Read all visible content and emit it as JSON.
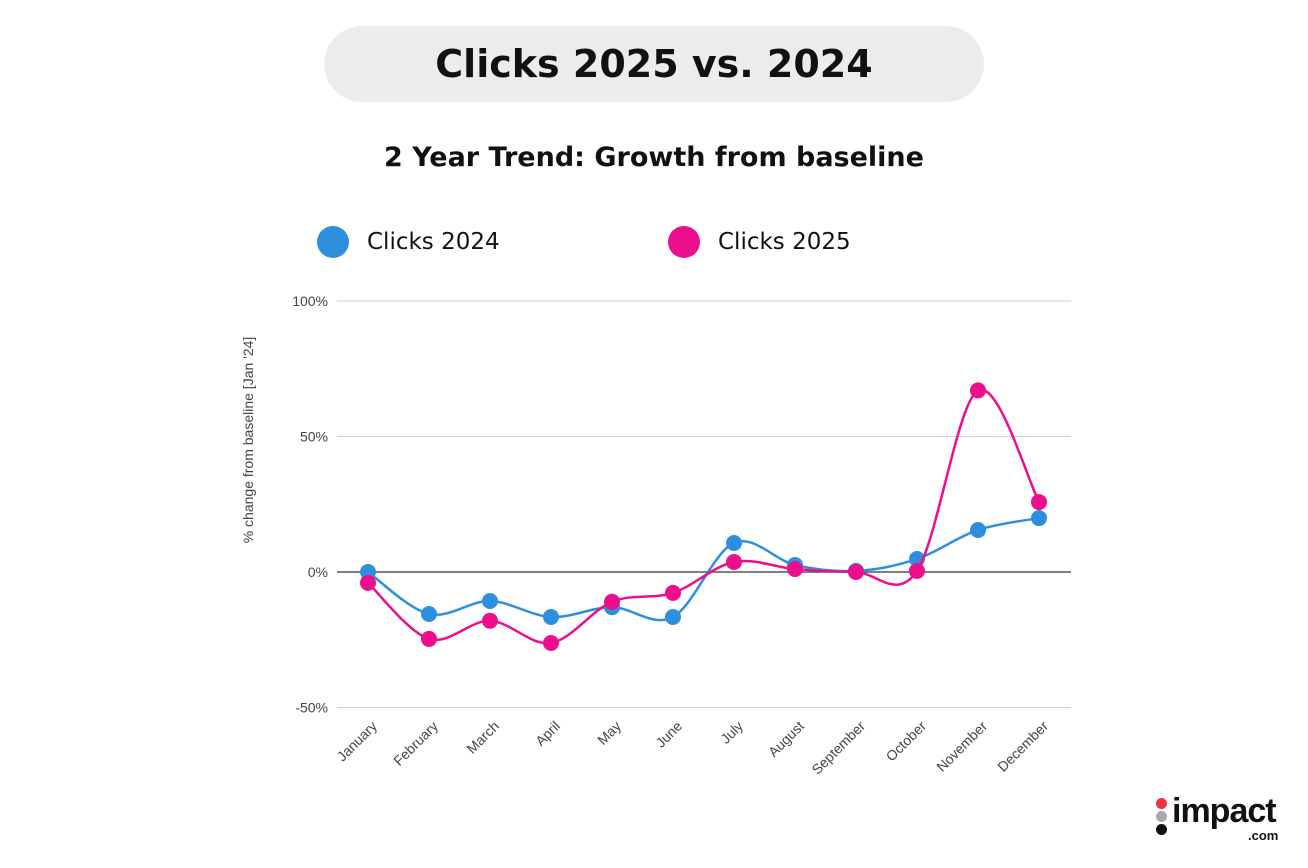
{
  "header": {
    "title": "Clicks 2025 vs. 2024"
  },
  "brand": {
    "logo_text": "impact",
    "logo_suffix": ".com"
  },
  "chart_data": {
    "type": "line",
    "title": "2 Year Trend: Growth from baseline",
    "ylabel": "% change from baseline [Jan '24]",
    "xlabel": "",
    "categories": [
      "January",
      "February",
      "March",
      "April",
      "May",
      "June",
      "July",
      "August",
      "September",
      "October",
      "November",
      "December"
    ],
    "ylim": [
      -50,
      100
    ],
    "yticks": [
      100,
      50,
      0,
      -50
    ],
    "ytick_labels": [
      "100%",
      "50%",
      "0%",
      "-50%"
    ],
    "grid": true,
    "legend": "top",
    "series": [
      {
        "name": "Clicks 2024",
        "color": "#2e8fde",
        "values": [
          0,
          -15.5,
          -10.7,
          -16.6,
          -13,
          -16.6,
          10.7,
          2.6,
          0.4,
          4.8,
          15.5,
          19.9
        ]
      },
      {
        "name": "Clicks 2025",
        "color": "#ec0e8c",
        "values": [
          -4,
          -24.7,
          -18,
          -26.2,
          -11,
          -7.7,
          3.7,
          1.1,
          0,
          0.4,
          67,
          25.8
        ]
      }
    ]
  }
}
